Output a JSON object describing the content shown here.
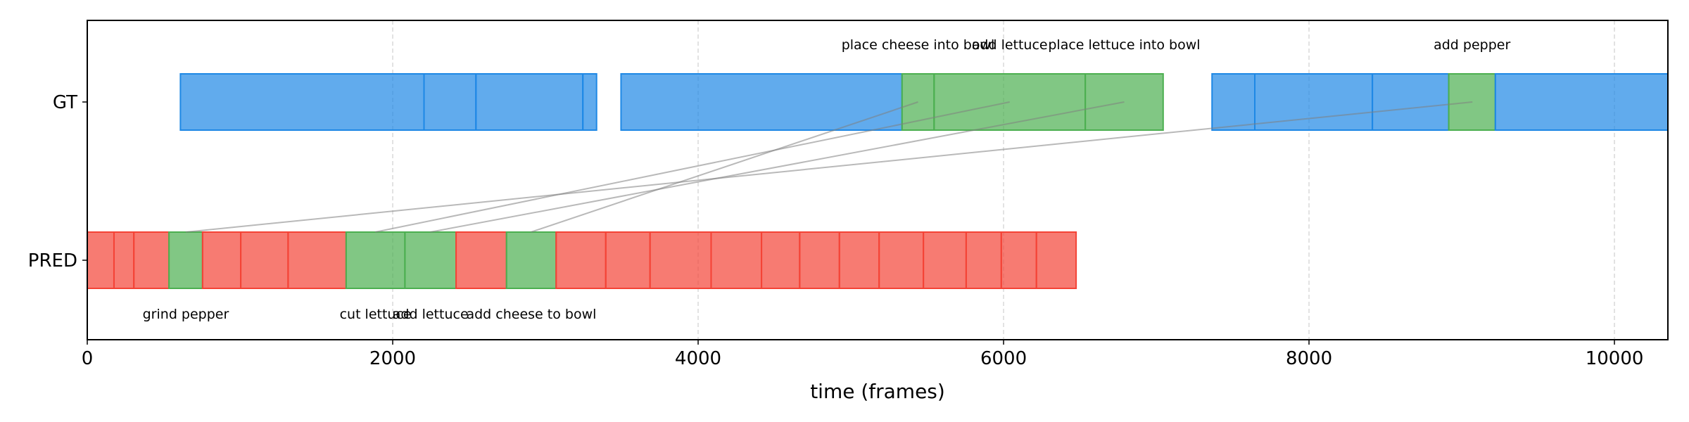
{
  "chart_data": {
    "type": "timeline",
    "xlabel": "time (frames)",
    "xlim": [
      0,
      10350
    ],
    "xticks": [
      0,
      2000,
      4000,
      6000,
      8000,
      10000
    ],
    "xtick_labels": [
      "0",
      "2000",
      "4000",
      "6000",
      "8000",
      "10000"
    ],
    "grid": "vertical dashed at x ticks",
    "rows": [
      "GT",
      "PRED"
    ],
    "colors": {
      "gt": "#1e88e5",
      "pred": "#f44336",
      "match": "#4caf50",
      "link": "#808080"
    },
    "gt_segments": [
      {
        "start": 610,
        "end": 2205,
        "matched": false
      },
      {
        "start": 2205,
        "end": 2545,
        "matched": false
      },
      {
        "start": 2545,
        "end": 3245,
        "matched": false
      },
      {
        "start": 3245,
        "end": 3335,
        "matched": false
      },
      {
        "start": 3495,
        "end": 5335,
        "matched": false
      },
      {
        "start": 5335,
        "end": 5545,
        "matched": true,
        "label": "place cheese into bowl"
      },
      {
        "start": 5545,
        "end": 6535,
        "matched": true,
        "label": "add lettuce"
      },
      {
        "start": 6535,
        "end": 7045,
        "matched": true,
        "label": "place lettuce into bowl"
      },
      {
        "start": 7365,
        "end": 7645,
        "matched": false
      },
      {
        "start": 7645,
        "end": 8415,
        "matched": false
      },
      {
        "start": 8415,
        "end": 8915,
        "matched": false
      },
      {
        "start": 8915,
        "end": 9220,
        "matched": true,
        "label": "add pepper"
      },
      {
        "start": 9220,
        "end": 10350,
        "matched": false
      }
    ],
    "pred_segments": [
      {
        "start": 0,
        "end": 175,
        "matched": false
      },
      {
        "start": 175,
        "end": 305,
        "matched": false
      },
      {
        "start": 305,
        "end": 535,
        "matched": false
      },
      {
        "start": 535,
        "end": 755,
        "matched": true,
        "label": "grind pepper"
      },
      {
        "start": 755,
        "end": 1005,
        "matched": false
      },
      {
        "start": 1005,
        "end": 1315,
        "matched": false
      },
      {
        "start": 1315,
        "end": 1695,
        "matched": false
      },
      {
        "start": 1695,
        "end": 2080,
        "matched": true,
        "label": "cut lettuce"
      },
      {
        "start": 2080,
        "end": 2415,
        "matched": true,
        "label": "add lettuce"
      },
      {
        "start": 2415,
        "end": 2745,
        "matched": false
      },
      {
        "start": 2745,
        "end": 3070,
        "matched": true,
        "label": "add cheese to bowl"
      },
      {
        "start": 3070,
        "end": 3395,
        "matched": false
      },
      {
        "start": 3395,
        "end": 3685,
        "matched": false
      },
      {
        "start": 3685,
        "end": 4085,
        "matched": false
      },
      {
        "start": 4085,
        "end": 4415,
        "matched": false
      },
      {
        "start": 4415,
        "end": 4665,
        "matched": false
      },
      {
        "start": 4665,
        "end": 4925,
        "matched": false
      },
      {
        "start": 4925,
        "end": 5185,
        "matched": false
      },
      {
        "start": 5185,
        "end": 5475,
        "matched": false
      },
      {
        "start": 5475,
        "end": 5755,
        "matched": false
      },
      {
        "start": 5755,
        "end": 5985,
        "matched": false
      },
      {
        "start": 5985,
        "end": 6215,
        "matched": false
      },
      {
        "start": 6215,
        "end": 6475,
        "matched": false
      }
    ],
    "links": [
      {
        "pred_x": 645,
        "gt_x": 9070
      },
      {
        "pred_x": 1885,
        "gt_x": 6040
      },
      {
        "pred_x": 2245,
        "gt_x": 6790
      },
      {
        "pred_x": 2905,
        "gt_x": 5440
      }
    ]
  }
}
